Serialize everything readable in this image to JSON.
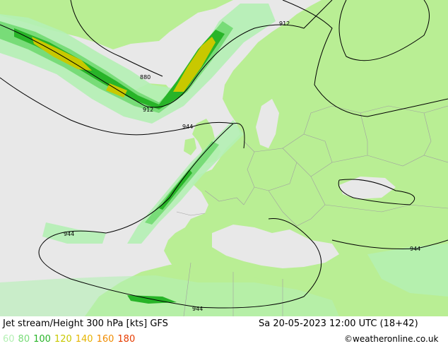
{
  "header": {
    "title": "Jet stream/Height 300 hPa [kts] GFS",
    "datetime": "Sa 20-05-2023 12:00 UTC (18+42)",
    "credit": "©weatheronline.co.uk"
  },
  "legend": {
    "items": [
      {
        "label": "60",
        "color": "#b4f0b4"
      },
      {
        "label": "80",
        "color": "#78dc78"
      },
      {
        "label": "100",
        "color": "#28b428"
      },
      {
        "label": "120",
        "color": "#c8c800"
      },
      {
        "label": "140",
        "color": "#e6b400"
      },
      {
        "label": "160",
        "color": "#f08c00"
      },
      {
        "label": "180",
        "color": "#e63c00"
      }
    ]
  },
  "contours": {
    "labels": [
      "912",
      "880",
      "912",
      "944",
      "944",
      "944",
      "944"
    ]
  },
  "colors": {
    "sea": "#e8e8e8",
    "land": "#b9ee94",
    "border": "#a0a0a0"
  }
}
